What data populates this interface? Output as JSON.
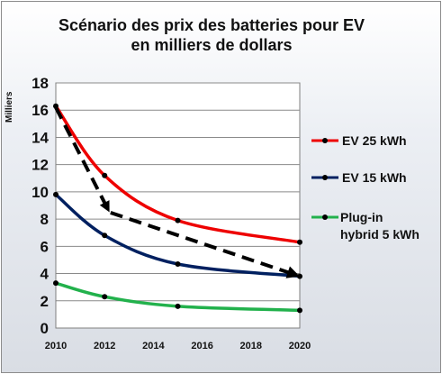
{
  "chart_data": {
    "type": "line",
    "title_line1": "Scénario des prix des batteries  pour EV",
    "title_line2": "en milliers de dollars",
    "ylabel": "Milliers",
    "xlabel": "",
    "xlim": [
      2010,
      2020
    ],
    "ylim": [
      0,
      18
    ],
    "x_ticks": [
      2010,
      2012,
      2014,
      2016,
      2018,
      2020
    ],
    "y_ticks": [
      0,
      2,
      4,
      6,
      8,
      10,
      12,
      14,
      16,
      18
    ],
    "grid": "horizontal",
    "legend_position": "right",
    "series": [
      {
        "name": "EV 25 kWh",
        "color": "#ee0000",
        "marker_x": [
          2010,
          2012,
          2015,
          2020
        ],
        "marker_y": [
          16.3,
          11.2,
          7.9,
          6.3
        ]
      },
      {
        "name": "EV 15 kWh",
        "color": "#002060",
        "marker_x": [
          2010,
          2012,
          2015,
          2020
        ],
        "marker_y": [
          9.8,
          6.8,
          4.7,
          3.8
        ]
      },
      {
        "name": "Plug-in hybrid 5 kWh",
        "color": "#22b14c",
        "marker_x": [
          2010,
          2012,
          2015,
          2020
        ],
        "marker_y": [
          3.3,
          2.3,
          1.6,
          1.3
        ]
      }
    ],
    "annotation_arrow": {
      "style": "dashed",
      "color": "#000000",
      "points_x": [
        2010,
        2012.2,
        2020
      ],
      "points_y": [
        16.2,
        8.5,
        3.8
      ]
    }
  },
  "legend": {
    "item1": "EV 25 kWh",
    "item2": "EV 15 kWh",
    "item3_line1": "Plug-in",
    "item3_line2": "hybrid 5 kWh"
  }
}
